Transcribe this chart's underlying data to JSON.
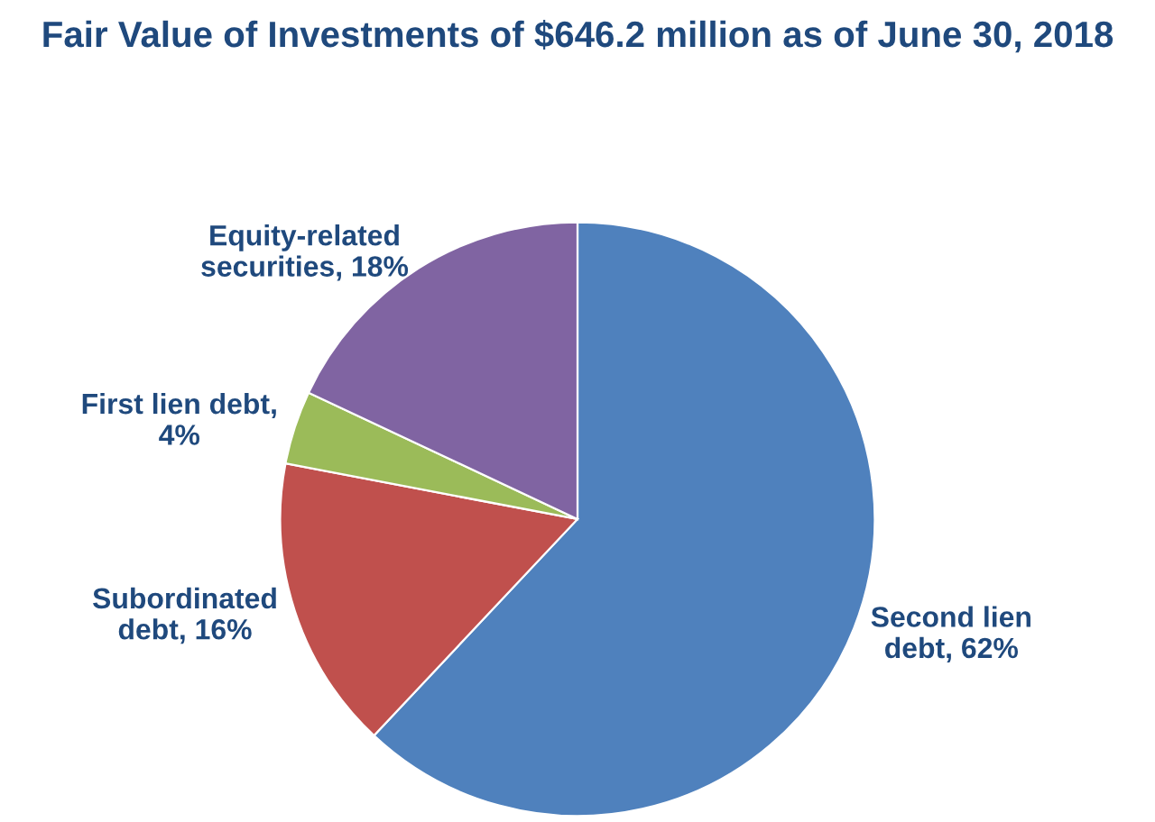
{
  "chart_data": {
    "type": "pie",
    "title": "Fair Value of Investments of $646.2 million as of June 30, 2018",
    "categories": [
      "Second lien\ndebt, 62%",
      "Subordinated\ndebt, 16%",
      "First lien debt,\n4%",
      "Equity-related\nsecurities, 18%"
    ],
    "values": [
      62,
      16,
      4,
      18
    ],
    "colors": [
      "#4f81bd",
      "#c0504d",
      "#9bbb59",
      "#8064a2"
    ],
    "legend": false
  }
}
